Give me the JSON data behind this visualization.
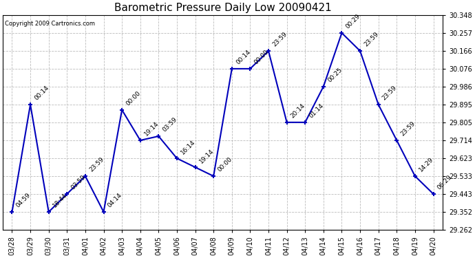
{
  "title": "Barometric Pressure Daily Low 20090421",
  "copyright": "Copyright 2009 Cartronics.com",
  "x_labels": [
    "03/28",
    "03/29",
    "03/30",
    "03/31",
    "04/01",
    "04/02",
    "04/03",
    "04/04",
    "04/05",
    "04/06",
    "04/07",
    "04/08",
    "04/09",
    "04/10",
    "04/11",
    "04/12",
    "04/13",
    "04/14",
    "04/15",
    "04/16",
    "04/17",
    "04/18",
    "04/19",
    "04/20"
  ],
  "y_values": [
    29.352,
    29.895,
    29.352,
    29.443,
    29.533,
    29.352,
    29.868,
    29.714,
    29.735,
    29.623,
    29.578,
    29.533,
    30.076,
    30.076,
    30.166,
    29.805,
    29.805,
    29.986,
    30.257,
    30.166,
    29.895,
    29.714,
    29.533,
    29.443
  ],
  "point_labels": [
    "04:59",
    "00:14",
    "18:44",
    "03:59",
    "23:59",
    "04:14",
    "00:00",
    "19:14",
    "03:59",
    "16:14",
    "19:14",
    "00:00",
    "00:14",
    "00:00",
    "23:59",
    "20:14",
    "01:14",
    "00:25",
    "00:29",
    "23:59",
    "23:59",
    "23:59",
    "14:29",
    "06:29"
  ],
  "y_min": 29.262,
  "y_max": 30.348,
  "y_ticks": [
    29.262,
    29.352,
    29.443,
    29.533,
    29.623,
    29.714,
    29.805,
    29.895,
    29.986,
    30.076,
    30.166,
    30.257,
    30.348
  ],
  "line_color": "#0000bb",
  "marker_color": "#0000bb",
  "background_color": "#ffffff",
  "grid_color": "#bbbbbb",
  "title_fontsize": 11,
  "label_fontsize": 7,
  "annot_fontsize": 6.5
}
